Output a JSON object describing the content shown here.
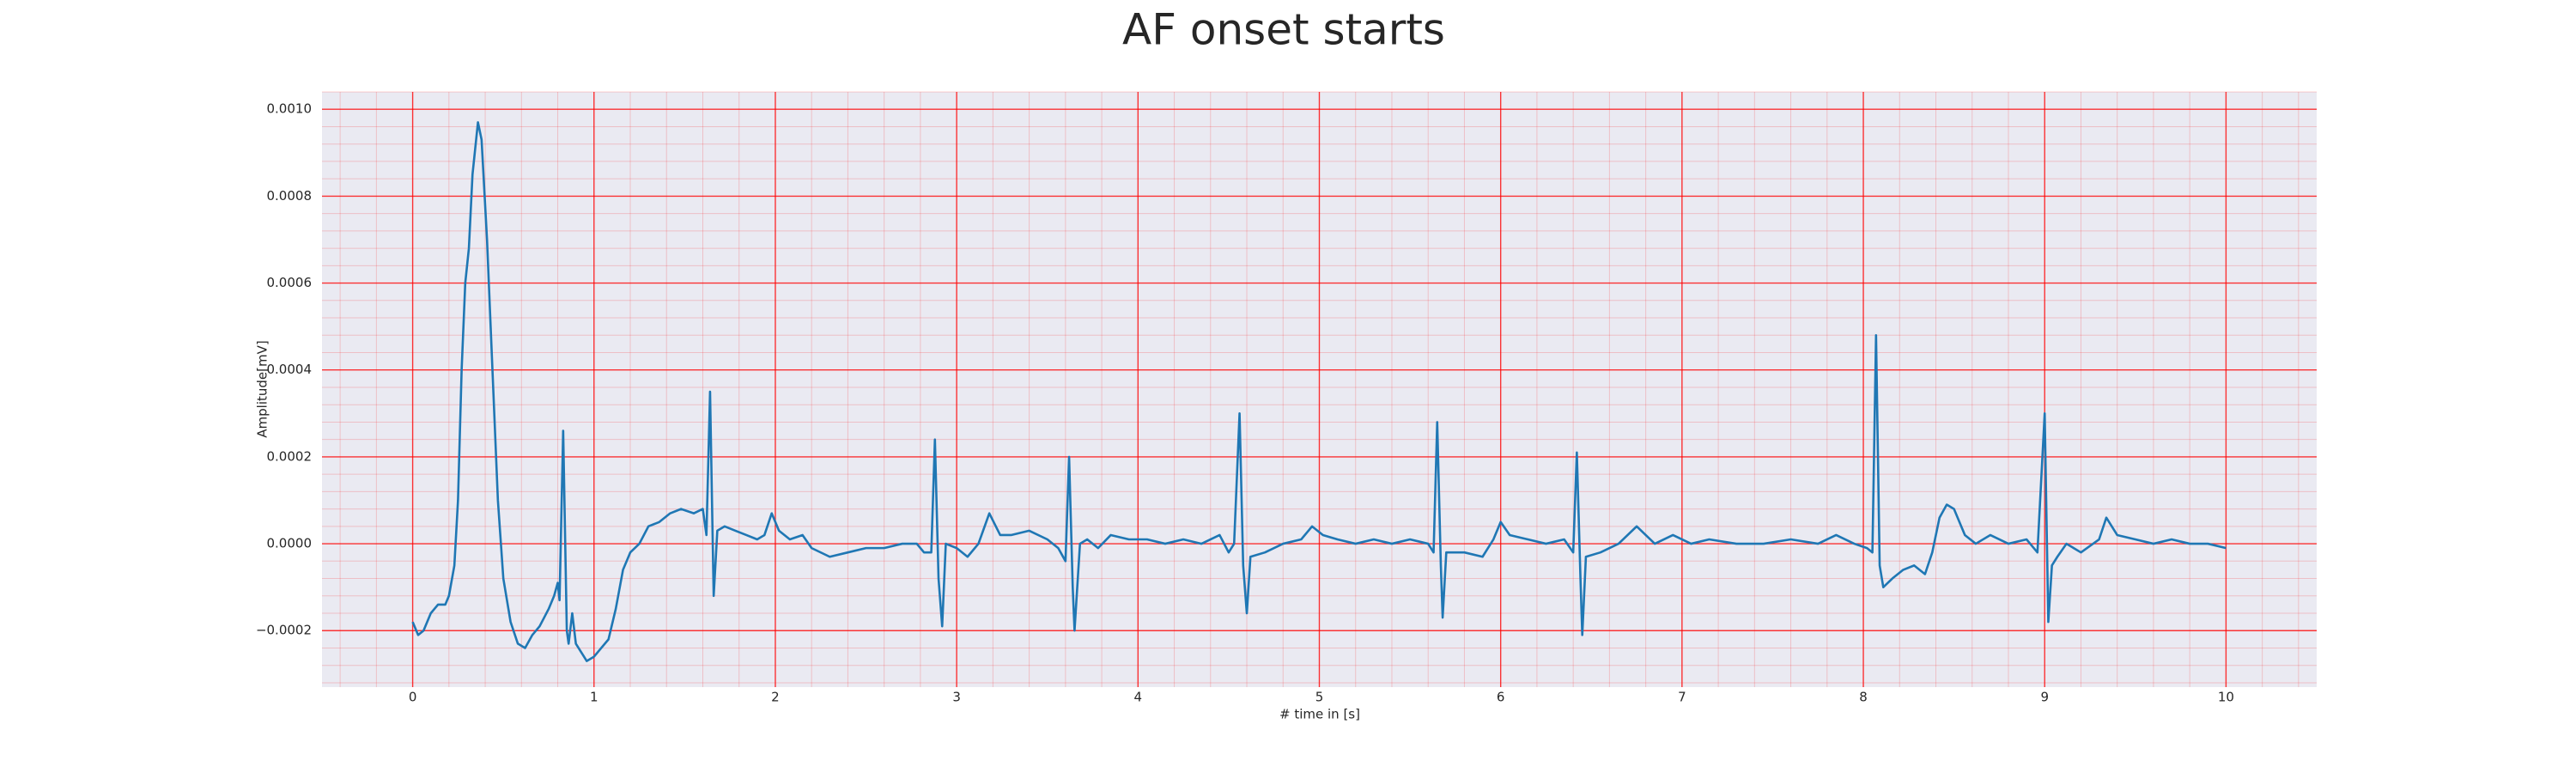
{
  "chart_data": {
    "type": "line",
    "title": "AF onset starts",
    "xlabel": "# time in [s]",
    "ylabel": "Amplitude[mV]",
    "x": [
      0,
      0.03,
      0.06,
      0.1,
      0.14,
      0.18,
      0.2,
      0.23,
      0.25,
      0.27,
      0.29,
      0.31,
      0.33,
      0.36,
      0.38,
      0.41,
      0.44,
      0.47,
      0.5,
      0.54,
      0.58,
      0.62,
      0.66,
      0.7,
      0.75,
      0.78,
      0.8,
      0.81,
      0.83,
      0.85,
      0.86,
      0.88,
      0.9,
      0.93,
      0.96,
      1.0,
      1.04,
      1.08,
      1.12,
      1.16,
      1.2,
      1.25,
      1.3,
      1.36,
      1.42,
      1.48,
      1.55,
      1.6,
      1.62,
      1.64,
      1.66,
      1.68,
      1.72,
      1.78,
      1.84,
      1.9,
      1.94,
      1.98,
      2.02,
      2.08,
      2.15,
      2.2,
      2.3,
      2.4,
      2.5,
      2.6,
      2.7,
      2.78,
      2.82,
      2.86,
      2.88,
      2.9,
      2.92,
      2.94,
      3.0,
      3.06,
      3.12,
      3.18,
      3.24,
      3.3,
      3.4,
      3.5,
      3.56,
      3.6,
      3.62,
      3.64,
      3.65,
      3.68,
      3.72,
      3.78,
      3.85,
      3.95,
      4.05,
      4.15,
      4.25,
      4.35,
      4.45,
      4.5,
      4.53,
      4.56,
      4.58,
      4.6,
      4.62,
      4.7,
      4.8,
      4.9,
      4.96,
      5.02,
      5.1,
      5.2,
      5.3,
      5.4,
      5.5,
      5.6,
      5.63,
      5.65,
      5.67,
      5.68,
      5.7,
      5.8,
      5.9,
      5.96,
      6.0,
      6.05,
      6.15,
      6.25,
      6.35,
      6.4,
      6.42,
      6.44,
      6.45,
      6.47,
      6.55,
      6.65,
      6.75,
      6.85,
      6.95,
      7.05,
      7.15,
      7.3,
      7.45,
      7.6,
      7.75,
      7.85,
      7.95,
      8.02,
      8.05,
      8.07,
      8.09,
      8.11,
      8.16,
      8.22,
      8.28,
      8.34,
      8.38,
      8.42,
      8.46,
      8.5,
      8.56,
      8.62,
      8.7,
      8.8,
      8.9,
      8.96,
      9.0,
      9.02,
      9.04,
      9.07,
      9.12,
      9.2,
      9.3,
      9.34,
      9.4,
      9.5,
      9.6,
      9.7,
      9.8,
      9.9,
      10.0
    ],
    "values": [
      -0.00018,
      -0.00021,
      -0.0002,
      -0.00016,
      -0.00014,
      -0.00014,
      -0.00012,
      -5e-05,
      0.0001,
      0.0004,
      0.0006,
      0.00068,
      0.00085,
      0.00097,
      0.00093,
      0.0007,
      0.0004,
      0.0001,
      -8e-05,
      -0.00018,
      -0.00023,
      -0.00024,
      -0.00021,
      -0.00019,
      -0.00015,
      -0.00012,
      -9e-05,
      -0.00013,
      0.00026,
      -0.0002,
      -0.00023,
      -0.00016,
      -0.00023,
      -0.00025,
      -0.00027,
      -0.00026,
      -0.00024,
      -0.00022,
      -0.00015,
      -6e-05,
      -2e-05,
      0.0,
      4e-05,
      5e-05,
      7e-05,
      8e-05,
      7e-05,
      8e-05,
      2e-05,
      0.00035,
      -0.00012,
      3e-05,
      4e-05,
      3e-05,
      2e-05,
      1e-05,
      2e-05,
      7e-05,
      3e-05,
      1e-05,
      2e-05,
      -1e-05,
      -3e-05,
      -2e-05,
      -1e-05,
      -1e-05,
      0.0,
      0.0,
      -2e-05,
      -2e-05,
      0.00024,
      -8e-05,
      -0.00019,
      0.0,
      -1e-05,
      -3e-05,
      0.0,
      7e-05,
      2e-05,
      2e-05,
      3e-05,
      1e-05,
      -1e-05,
      -4e-05,
      0.0002,
      -0.0001,
      -0.0002,
      0.0,
      1e-05,
      -1e-05,
      2e-05,
      1e-05,
      1e-05,
      0.0,
      1e-05,
      0.0,
      2e-05,
      -2e-05,
      0.0,
      0.0003,
      -5e-05,
      -0.00016,
      -3e-05,
      -2e-05,
      0.0,
      1e-05,
      4e-05,
      2e-05,
      1e-05,
      0.0,
      1e-05,
      0.0,
      1e-05,
      0.0,
      -2e-05,
      0.00028,
      -5e-05,
      -0.00017,
      -2e-05,
      -2e-05,
      -3e-05,
      1e-05,
      5e-05,
      2e-05,
      1e-05,
      0.0,
      1e-05,
      -2e-05,
      0.00021,
      -8e-05,
      -0.00021,
      -3e-05,
      -2e-05,
      0.0,
      4e-05,
      0.0,
      2e-05,
      0.0,
      1e-05,
      0.0,
      0.0,
      1e-05,
      0.0,
      2e-05,
      0.0,
      -1e-05,
      -2e-05,
      0.00048,
      -5e-05,
      -0.0001,
      -8e-05,
      -6e-05,
      -5e-05,
      -7e-05,
      -2e-05,
      6e-05,
      9e-05,
      8e-05,
      2e-05,
      0.0,
      2e-05,
      0.0,
      1e-05,
      -2e-05,
      0.0003,
      -0.00018,
      -5e-05,
      -3e-05,
      0.0,
      -2e-05,
      1e-05,
      6e-05,
      2e-05,
      1e-05,
      0.0,
      1e-05,
      0.0,
      0.0,
      -1e-05
    ],
    "color": "#1f77b4",
    "xlim": [
      -0.5,
      10.5
    ],
    "xticks": [
      0,
      1,
      2,
      3,
      4,
      5,
      6,
      7,
      8,
      9,
      10
    ],
    "ylim": [
      -0.00033,
      0.00104
    ],
    "yticks": [
      {
        "value": -0.0002,
        "label": "−0.0002"
      },
      {
        "value": 0,
        "label": "0.0000"
      },
      {
        "value": 0.0002,
        "label": "0.0002"
      },
      {
        "value": 0.0004,
        "label": "0.0004"
      },
      {
        "value": 0.0006,
        "label": "0.0006"
      },
      {
        "value": 0.0008,
        "label": "0.0008"
      },
      {
        "value": 0.001,
        "label": "0.0010"
      }
    ],
    "grid": true,
    "minor_grid": true,
    "grid_color": "#ff0000",
    "background": "#eaeaf2"
  }
}
